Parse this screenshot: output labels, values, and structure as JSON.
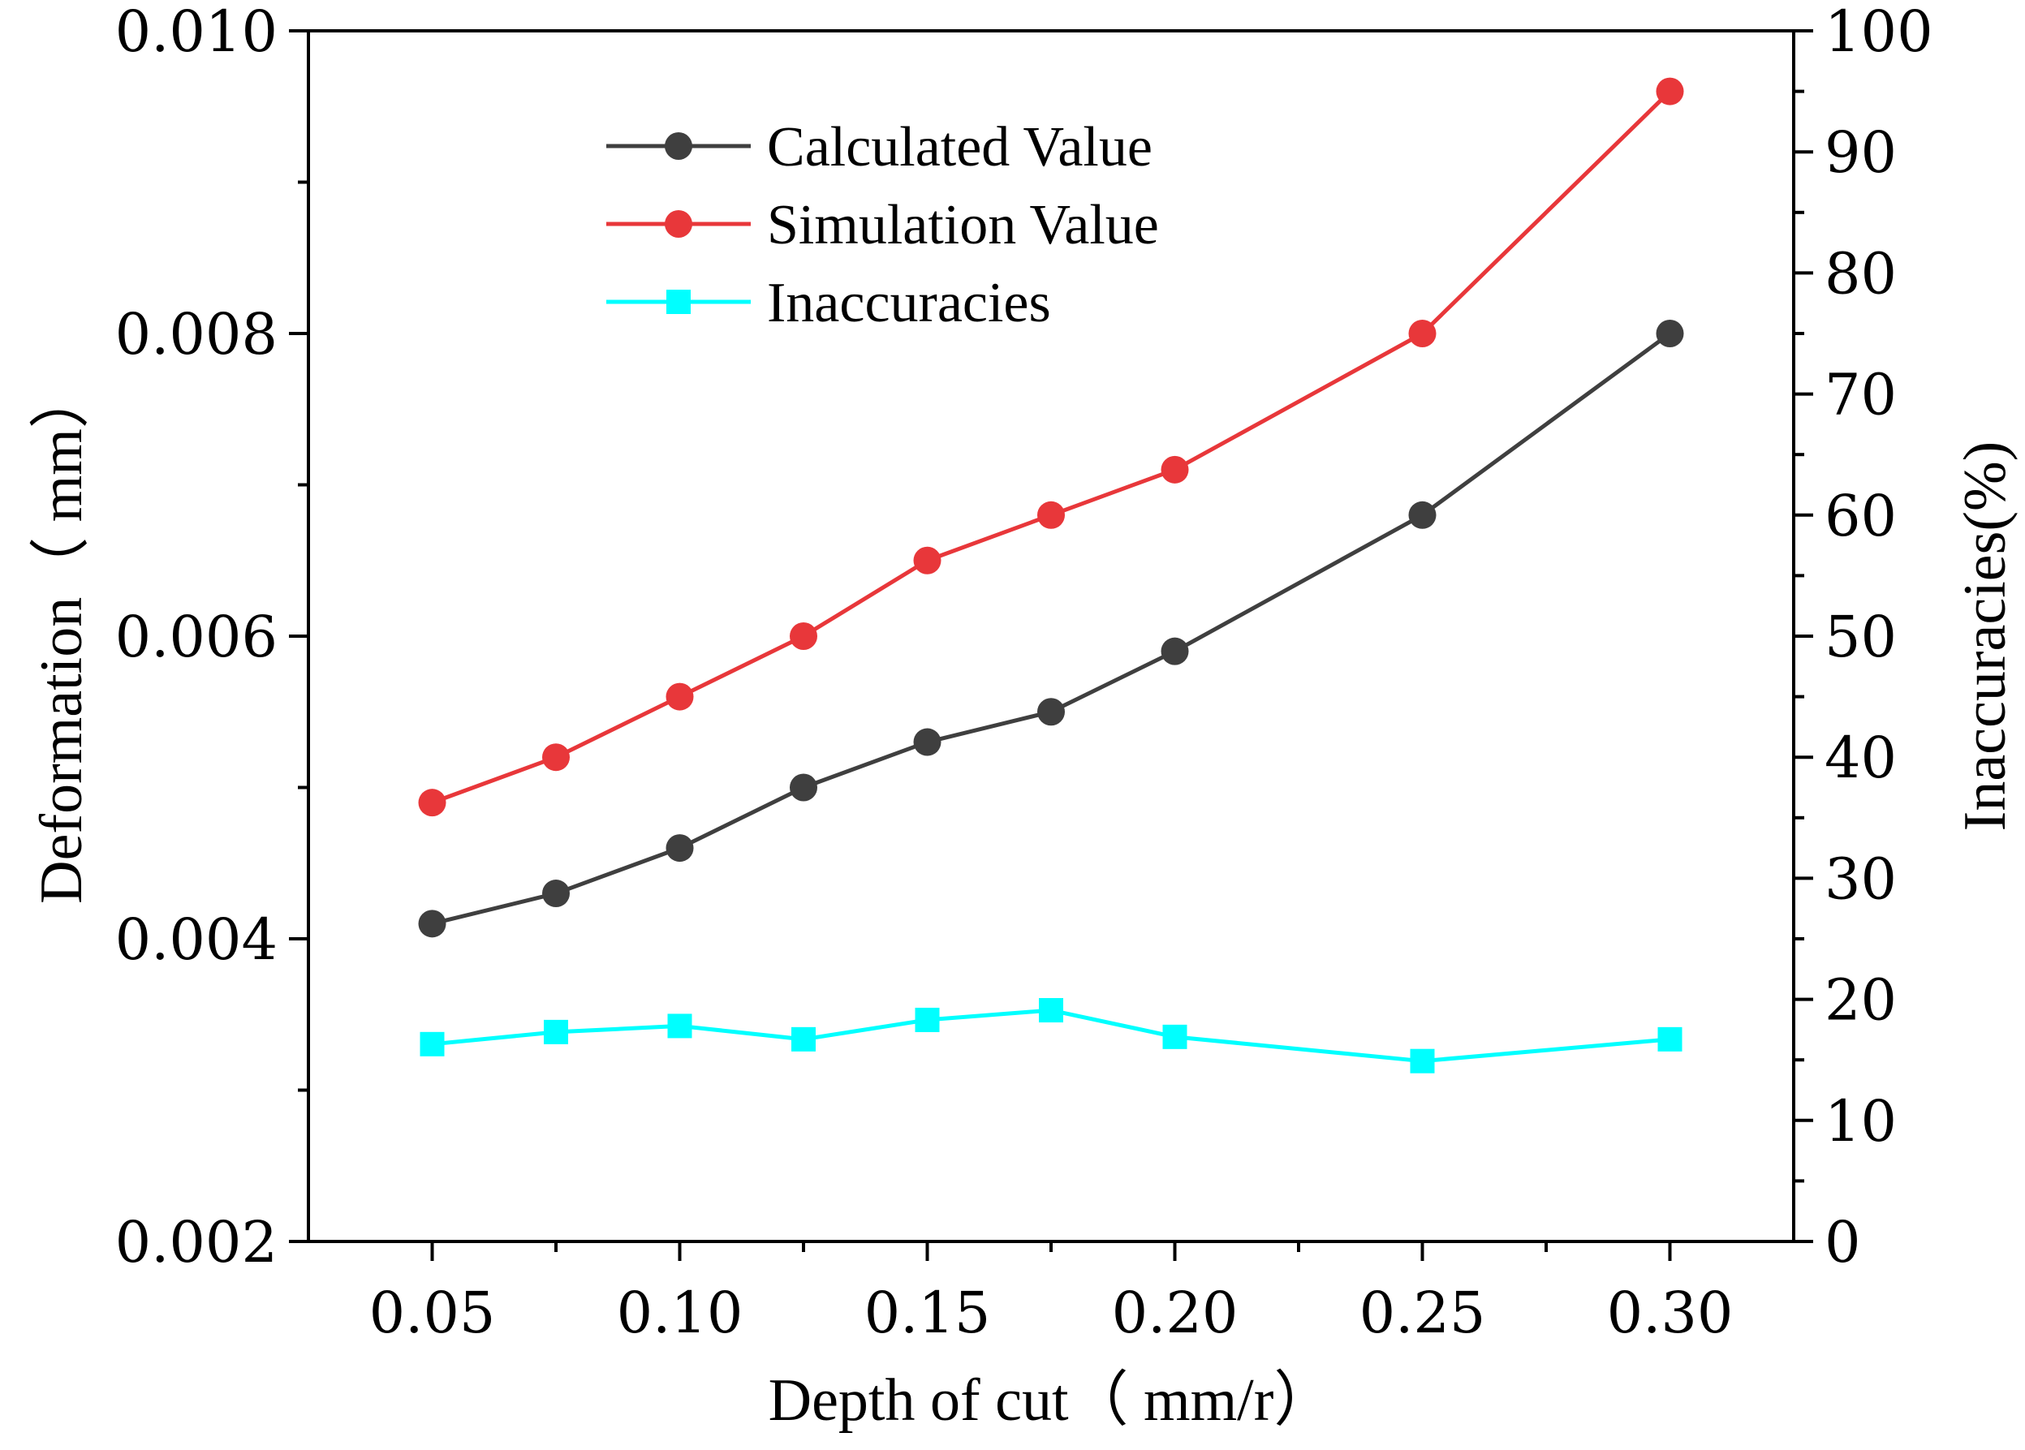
{
  "chart_data": {
    "type": "line",
    "x": [
      0.05,
      0.075,
      0.1,
      0.125,
      0.15,
      0.175,
      0.2,
      0.25,
      0.3
    ],
    "xlabel": "Depth of cut（ mm/r）",
    "ylabel": "Deformation（ mm）",
    "y2label": "Inaccuracies(%)",
    "xlim": [
      0.025,
      0.325
    ],
    "ylim": [
      0.002,
      0.01
    ],
    "y2lim": [
      0,
      100
    ],
    "xticks": [
      "0.05",
      "0.10",
      "0.15",
      "0.20",
      "0.25",
      "0.30"
    ],
    "xtick_values": [
      0.05,
      0.1,
      0.15,
      0.2,
      0.25,
      0.3
    ],
    "yticks": [
      "0.002",
      "0.004",
      "0.006",
      "0.008",
      "0.010"
    ],
    "ytick_values": [
      0.002,
      0.004,
      0.006,
      0.008,
      0.01
    ],
    "y2ticks": [
      "0",
      "10",
      "20",
      "30",
      "40",
      "50",
      "60",
      "70",
      "80",
      "90",
      "100"
    ],
    "y2tick_values": [
      0,
      10,
      20,
      30,
      40,
      50,
      60,
      70,
      80,
      90,
      100
    ],
    "legend_position": "top-left",
    "grid": false,
    "series": [
      {
        "name": "Calculated Value",
        "axis": "left",
        "marker": "circle",
        "color": "#3f3f3f",
        "values": [
          0.0041,
          0.0043,
          0.0046,
          0.005,
          0.0053,
          0.0055,
          0.0059,
          0.0068,
          0.008
        ]
      },
      {
        "name": "Simulation Value",
        "axis": "left",
        "marker": "circle",
        "color": "#e8373a",
        "values": [
          0.0049,
          0.0052,
          0.0056,
          0.006,
          0.0065,
          0.0068,
          0.0071,
          0.008,
          0.0096
        ]
      },
      {
        "name": "Inaccuracies",
        "axis": "right",
        "marker": "square",
        "color": "#00ffff",
        "values": [
          16.3,
          17.3,
          17.8,
          16.7,
          18.3,
          19.1,
          16.9,
          14.9,
          16.7
        ]
      }
    ]
  }
}
